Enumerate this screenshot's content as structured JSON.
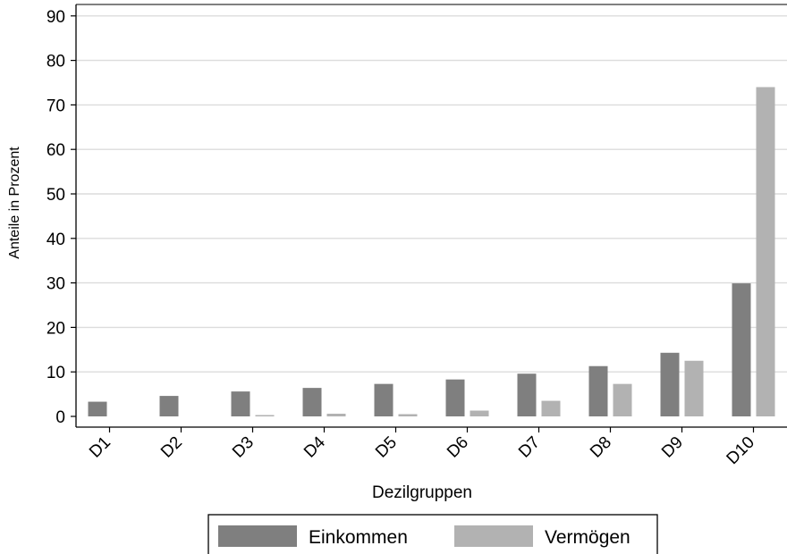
{
  "chart_data": {
    "type": "bar",
    "title": "",
    "xlabel": "Dezilgruppen",
    "ylabel": "Anteile in Prozent",
    "ylim": [
      0,
      90
    ],
    "yticks": [
      0,
      10,
      20,
      30,
      40,
      50,
      60,
      70,
      80,
      90
    ],
    "categories": [
      "D1",
      "D2",
      "D3",
      "D4",
      "D5",
      "D6",
      "D7",
      "D8",
      "D9",
      "D10"
    ],
    "series": [
      {
        "name": "Einkommen",
        "color": "#7f7f7f",
        "values": [
          3.3,
          4.6,
          5.6,
          6.4,
          7.3,
          8.3,
          9.6,
          11.3,
          14.3,
          29.9
        ]
      },
      {
        "name": "Vermögen",
        "color": "#b2b2b2",
        "values": [
          0.0,
          0.0,
          0.3,
          0.6,
          0.5,
          1.3,
          3.5,
          7.3,
          12.5,
          74.0
        ]
      }
    ],
    "grid": true,
    "legend_position": "bottom"
  }
}
